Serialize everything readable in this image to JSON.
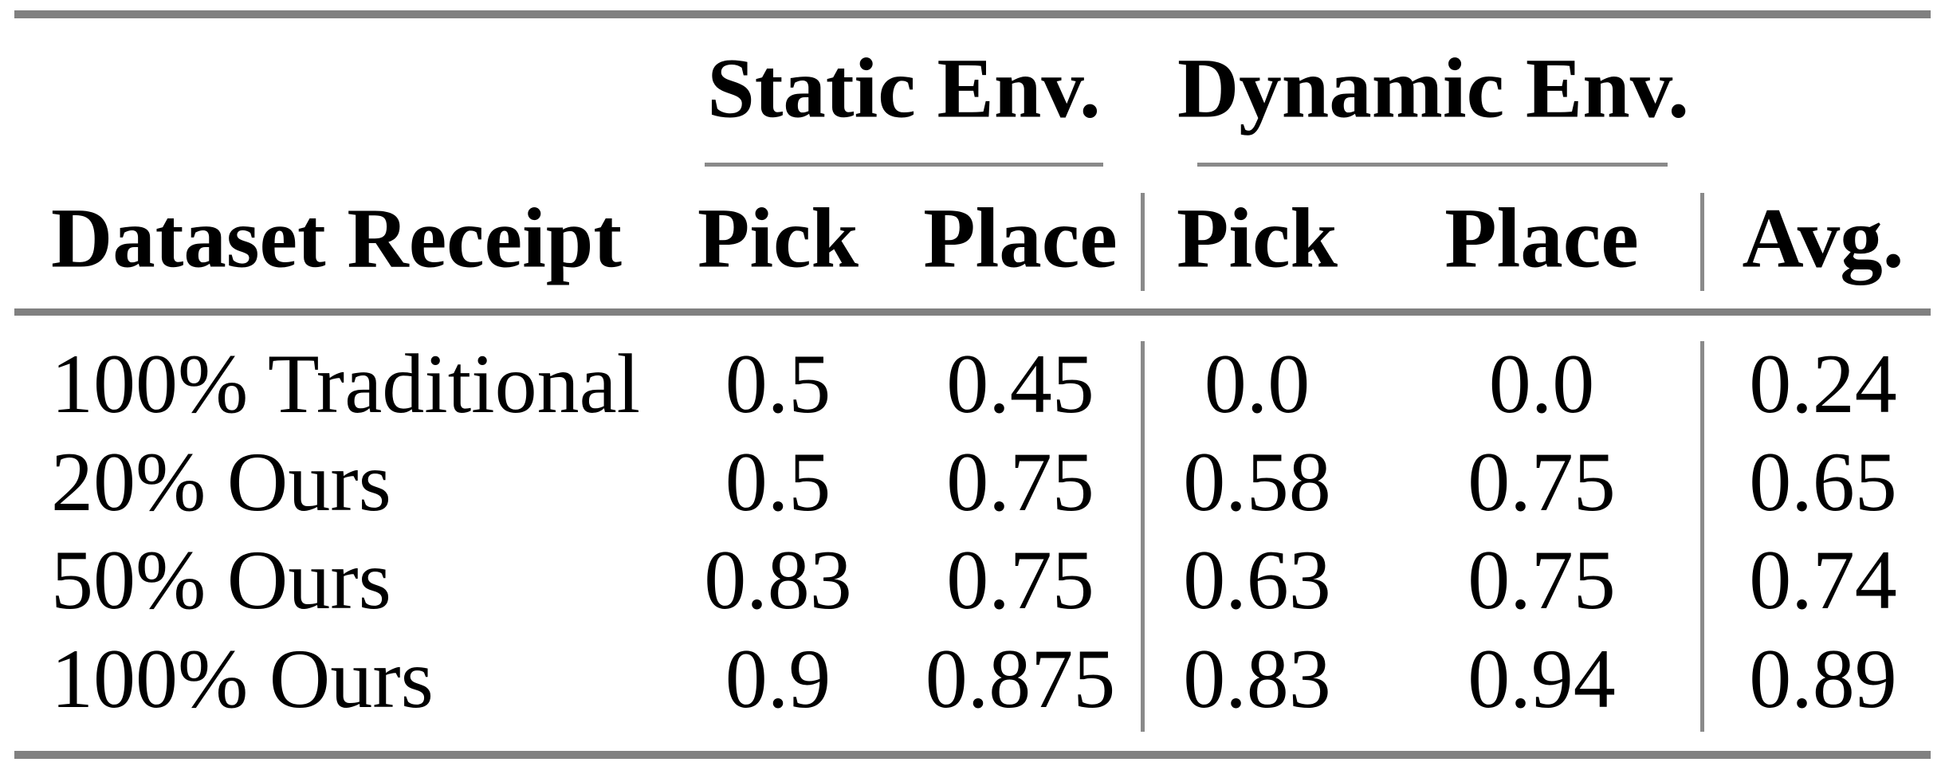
{
  "table": {
    "group_headers": {
      "static": "Static Env.",
      "dynamic": "Dynamic Env."
    },
    "header": {
      "row_label": "Dataset Receipt",
      "static_pick": "Pick",
      "static_place": "Place",
      "dynamic_pick": "Pick",
      "dynamic_place": "Place",
      "avg": "Avg."
    },
    "rows": [
      {
        "label": "100% Traditional",
        "static_pick": "0.5",
        "static_place": "0.45",
        "dynamic_pick": "0.0",
        "dynamic_place": "0.0",
        "avg": "0.24"
      },
      {
        "label": "20% Ours",
        "static_pick": "0.5",
        "static_place": "0.75",
        "dynamic_pick": "0.58",
        "dynamic_place": "0.75",
        "avg": "0.65"
      },
      {
        "label": "50% Ours",
        "static_pick": "0.83",
        "static_place": "0.75",
        "dynamic_pick": "0.63",
        "dynamic_place": "0.75",
        "avg": "0.74"
      },
      {
        "label": "100% Ours",
        "static_pick": "0.9",
        "static_place": "0.875",
        "dynamic_pick": "0.83",
        "dynamic_place": "0.94",
        "avg": "0.89"
      }
    ],
    "colors": {
      "rule_gray": "#808080",
      "separator_gray": "#8a8a8a",
      "text_black": "#000000"
    }
  }
}
